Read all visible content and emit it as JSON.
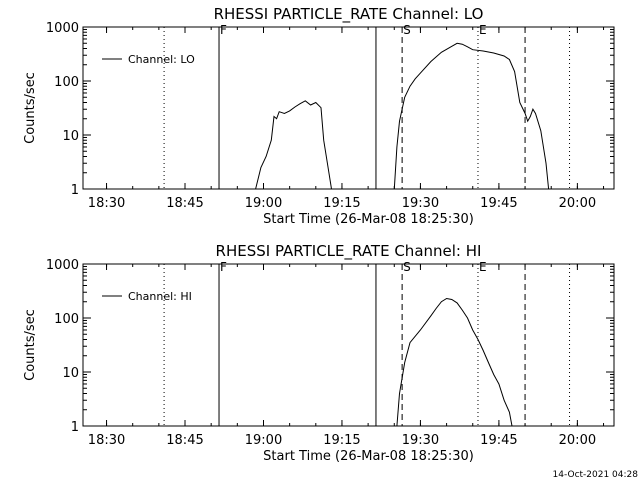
{
  "footer_stamp": "14-Oct-2021 04:28",
  "axis_origin_minutes": 1105.5,
  "chart_data": [
    {
      "type": "line",
      "title": "RHESSI PARTICLE_RATE Channel: LO",
      "xlabel": "Start Time (26-Mar-08 18:25:30)",
      "ylabel": "Counts/sec",
      "xlim": [
        "18:25:30",
        "20:07:00"
      ],
      "ylim": [
        1,
        1000
      ],
      "yscale": "log",
      "xticks": [
        "18:30",
        "18:45",
        "19:00",
        "19:15",
        "19:30",
        "19:45",
        "20:00"
      ],
      "yticks": [
        "1",
        "10",
        "100",
        "1000"
      ],
      "legend": {
        "position": "top-left",
        "entries": [
          "Channel: LO"
        ]
      },
      "markers": [
        {
          "time": "18:41",
          "style": "dotted",
          "label": ""
        },
        {
          "time": "18:51:30",
          "style": "solid",
          "label": "F"
        },
        {
          "time": "19:21:30",
          "style": "solid",
          "label": ""
        },
        {
          "time": "19:26:30",
          "style": "dashed",
          "label": "S"
        },
        {
          "time": "19:41",
          "style": "dotted",
          "label": "E"
        },
        {
          "time": "19:50",
          "style": "dashed",
          "label": ""
        },
        {
          "time": "19:58:30",
          "style": "dotted",
          "label": ""
        }
      ],
      "series": [
        {
          "name": "Channel: LO",
          "segments": [
            [
              [
                "18:58:30",
                1
              ],
              [
                "18:59:30",
                2.5
              ],
              [
                "19:00:30",
                4
              ],
              [
                "19:01:30",
                8
              ],
              [
                "19:02",
                22
              ],
              [
                "19:02:30",
                20
              ],
              [
                "19:03",
                27
              ],
              [
                "19:04",
                25
              ],
              [
                "19:05",
                28
              ],
              [
                "19:06",
                33
              ],
              [
                "19:07",
                38
              ],
              [
                "19:08",
                43
              ],
              [
                "19:09",
                36
              ],
              [
                "19:10",
                40
              ],
              [
                "19:11",
                32
              ],
              [
                "19:11:30",
                8
              ],
              [
                "19:12:30",
                2
              ],
              [
                "19:13",
                1
              ]
            ],
            [
              [
                "19:25",
                1
              ],
              [
                "19:25:30",
                6
              ],
              [
                "19:26",
                18
              ],
              [
                "19:27",
                50
              ],
              [
                "19:28",
                80
              ],
              [
                "19:29",
                110
              ],
              [
                "19:30",
                140
              ],
              [
                "19:32",
                230
              ],
              [
                "19:34",
                340
              ],
              [
                "19:36",
                440
              ],
              [
                "19:37",
                500
              ],
              [
                "19:38",
                480
              ],
              [
                "19:39",
                430
              ],
              [
                "19:40",
                380
              ],
              [
                "19:42",
                360
              ],
              [
                "19:44",
                330
              ],
              [
                "19:46",
                290
              ],
              [
                "19:47",
                250
              ],
              [
                "19:48",
                150
              ],
              [
                "19:49",
                40
              ],
              [
                "19:50",
                25
              ],
              [
                "19:50:30",
                18
              ],
              [
                "19:51",
                22
              ],
              [
                "19:51:30",
                30
              ],
              [
                "19:52",
                25
              ],
              [
                "19:53",
                12
              ],
              [
                "19:54",
                3
              ],
              [
                "19:54:30",
                1
              ]
            ]
          ]
        }
      ]
    },
    {
      "type": "line",
      "title": "RHESSI PARTICLE_RATE Channel: HI",
      "xlabel": "Start Time (26-Mar-08 18:25:30)",
      "ylabel": "Counts/sec",
      "xlim": [
        "18:25:30",
        "20:07:00"
      ],
      "ylim": [
        1,
        1000
      ],
      "yscale": "log",
      "xticks": [
        "18:30",
        "18:45",
        "19:00",
        "19:15",
        "19:30",
        "19:45",
        "20:00"
      ],
      "yticks": [
        "1",
        "10",
        "100",
        "1000"
      ],
      "legend": {
        "position": "top-left",
        "entries": [
          "Channel: HI"
        ]
      },
      "markers": [
        {
          "time": "18:41",
          "style": "dotted",
          "label": ""
        },
        {
          "time": "18:51:30",
          "style": "solid",
          "label": "F"
        },
        {
          "time": "19:21:30",
          "style": "solid",
          "label": ""
        },
        {
          "time": "19:26:30",
          "style": "dashed",
          "label": "S"
        },
        {
          "time": "19:41",
          "style": "dotted",
          "label": "E"
        },
        {
          "time": "19:50",
          "style": "dashed",
          "label": ""
        },
        {
          "time": "19:58:30",
          "style": "dotted",
          "label": ""
        }
      ],
      "series": [
        {
          "name": "Channel: HI",
          "segments": [
            [
              [
                "19:25:30",
                1
              ],
              [
                "19:26",
                4
              ],
              [
                "19:27",
                15
              ],
              [
                "19:28",
                35
              ],
              [
                "19:30",
                60
              ],
              [
                "19:32",
                110
              ],
              [
                "19:33",
                150
              ],
              [
                "19:34",
                200
              ],
              [
                "19:35",
                230
              ],
              [
                "19:36",
                220
              ],
              [
                "19:37",
                190
              ],
              [
                "19:38",
                140
              ],
              [
                "19:39",
                100
              ],
              [
                "19:40",
                60
              ],
              [
                "19:41",
                40
              ],
              [
                "19:42",
                25
              ],
              [
                "19:43",
                15
              ],
              [
                "19:44",
                9
              ],
              [
                "19:45",
                6
              ],
              [
                "19:46",
                3
              ],
              [
                "19:47",
                1.8
              ],
              [
                "19:47:30",
                1
              ]
            ]
          ]
        }
      ]
    }
  ]
}
